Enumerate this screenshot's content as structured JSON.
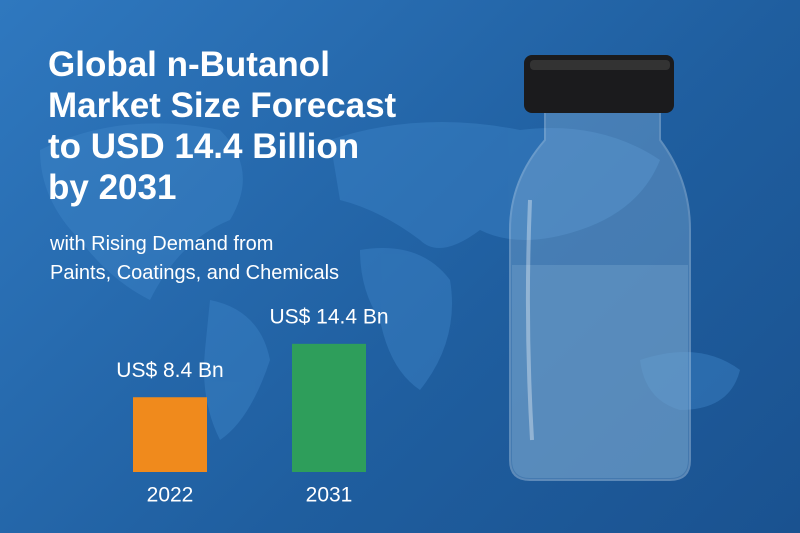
{
  "chart_data": {
    "type": "bar",
    "title": "Global n-Butanol\nMarket Size Forecast\nto USD 14.4 Billion\nby 2031",
    "subtitle": "with Rising Demand from\nPaints, Coatings, and Chemicals",
    "categories": [
      "2022",
      "2031"
    ],
    "values": [
      8.4,
      14.4
    ],
    "value_labels": [
      "US$ 8.4 Bn",
      "US$ 14.4 Bn"
    ],
    "colors": [
      "#f08a1c",
      "#2e9e5b"
    ]
  }
}
